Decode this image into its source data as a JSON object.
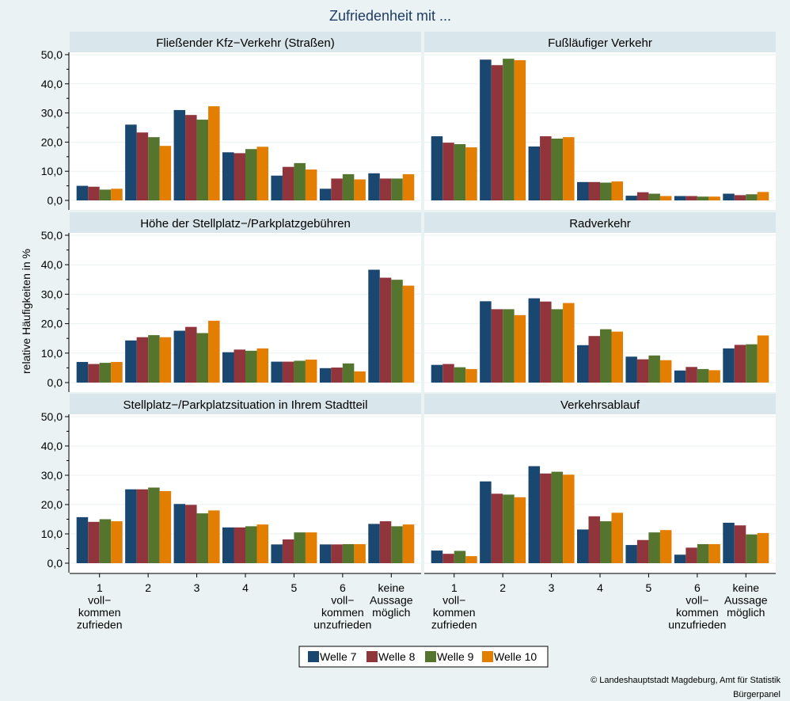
{
  "title": "Zufriedenheit mit ...",
  "ylabel": "relative Häufigkeiten in %",
  "credit": {
    "line1": "© Landeshauptstadt Magdeburg, Amt für Statistik",
    "line2": "Bürgerpanel"
  },
  "colors": {
    "background": "#eaf2f3",
    "panel_header": "#d9e6eb",
    "plot": "#ffffff",
    "series": [
      "#1a476f",
      "#90353b",
      "#55752f",
      "#e37e00"
    ]
  },
  "legend": {
    "items": [
      "Welle 7",
      "Welle 8",
      "Welle 9",
      "Welle 10"
    ],
    "position": "bottom"
  },
  "x_tick_labels": [
    [
      "1",
      "voll−",
      "kommen",
      "zufrieden"
    ],
    [
      "2"
    ],
    [
      "3"
    ],
    [
      "4"
    ],
    [
      "5"
    ],
    [
      "6",
      "voll−",
      "kommen",
      "unzufrieden"
    ],
    [
      "keine",
      "Aussage",
      "möglich"
    ]
  ],
  "y_tick_labels": [
    "0,0",
    "10,0",
    "20,0",
    "30,0",
    "40,0",
    "50,0"
  ],
  "chart_data": [
    {
      "type": "bar",
      "title": "Fließender Kfz−Verkehr (Straßen)",
      "categories": [
        "1 voll−kommen zufrieden",
        "2",
        "3",
        "4",
        "5",
        "6 voll−kommen unzufrieden",
        "keine Aussage möglich"
      ],
      "ylim": [
        0,
        50
      ],
      "grid": true,
      "series": [
        {
          "name": "Welle 7",
          "values": [
            5,
            26,
            31,
            16.5,
            8.5,
            4,
            9.3
          ]
        },
        {
          "name": "Welle 8",
          "values": [
            4.7,
            23.3,
            29.3,
            16.2,
            11.5,
            7.5,
            7.5
          ]
        },
        {
          "name": "Welle 9",
          "values": [
            3.7,
            21.7,
            27.7,
            17.6,
            12.8,
            9,
            7.5
          ]
        },
        {
          "name": "Welle 10",
          "values": [
            4,
            18.7,
            32.3,
            18.4,
            10.6,
            7.2,
            9
          ]
        }
      ]
    },
    {
      "type": "bar",
      "title": "Fußläufiger Verkehr",
      "categories": [
        "1 voll−kommen zufrieden",
        "2",
        "3",
        "4",
        "5",
        "6 voll−kommen unzufrieden",
        "keine Aussage möglich"
      ],
      "ylim": [
        0,
        50
      ],
      "grid": true,
      "series": [
        {
          "name": "Welle 7",
          "values": [
            22,
            48.3,
            18.5,
            6.3,
            1.6,
            1.5,
            2.3
          ]
        },
        {
          "name": "Welle 8",
          "values": [
            19.8,
            46.4,
            22,
            6.3,
            2.8,
            1.5,
            1.8
          ]
        },
        {
          "name": "Welle 9",
          "values": [
            19.3,
            48.6,
            21.2,
            6.1,
            2.3,
            1.3,
            2.1
          ]
        },
        {
          "name": "Welle 10",
          "values": [
            18.2,
            48.1,
            21.7,
            6.5,
            1.5,
            1.3,
            2.9
          ]
        }
      ]
    },
    {
      "type": "bar",
      "title": "Höhe der Stellplatz−/Parkplatzgebühren",
      "categories": [
        "1 voll−kommen zufrieden",
        "2",
        "3",
        "4",
        "5",
        "6 voll−kommen unzufrieden",
        "keine Aussage möglich"
      ],
      "ylim": [
        0,
        50
      ],
      "grid": true,
      "series": [
        {
          "name": "Welle 7",
          "values": [
            7,
            14.3,
            17.6,
            10.3,
            7.1,
            4.9,
            38.3
          ]
        },
        {
          "name": "Welle 8",
          "values": [
            6.3,
            15.4,
            18.9,
            11.2,
            7.1,
            5.1,
            35.6
          ]
        },
        {
          "name": "Welle 9",
          "values": [
            6.7,
            16.1,
            16.8,
            10.8,
            7.4,
            6.5,
            34.9
          ]
        },
        {
          "name": "Welle 10",
          "values": [
            7,
            15.4,
            21,
            11.6,
            7.8,
            3.8,
            32.9
          ]
        }
      ]
    },
    {
      "type": "bar",
      "title": "Radverkehr",
      "categories": [
        "1 voll−kommen zufrieden",
        "2",
        "3",
        "4",
        "5",
        "6 voll−kommen unzufrieden",
        "keine Aussage möglich"
      ],
      "ylim": [
        0,
        50
      ],
      "grid": true,
      "series": [
        {
          "name": "Welle 7",
          "values": [
            6,
            27.6,
            28.6,
            12.7,
            8.8,
            4.1,
            11.6
          ]
        },
        {
          "name": "Welle 8",
          "values": [
            6.3,
            24.9,
            27.5,
            15.8,
            7.9,
            5.3,
            12.8
          ]
        },
        {
          "name": "Welle 9",
          "values": [
            5.2,
            24.9,
            24.9,
            18.1,
            9.2,
            4.6,
            13
          ]
        },
        {
          "name": "Welle 10",
          "values": [
            4.6,
            22.9,
            27,
            17.3,
            7.6,
            4.2,
            16
          ]
        }
      ]
    },
    {
      "type": "bar",
      "title": "Stellplatz−/Parkplatzsituation in Ihrem Stadtteil",
      "categories": [
        "1 voll−kommen zufrieden",
        "2",
        "3",
        "4",
        "5",
        "6 voll−kommen unzufrieden",
        "keine Aussage möglich"
      ],
      "ylim": [
        0,
        50
      ],
      "grid": true,
      "series": [
        {
          "name": "Welle 7",
          "values": [
            15.7,
            25.2,
            20.2,
            12.2,
            6.4,
            6.4,
            13.4
          ]
        },
        {
          "name": "Welle 8",
          "values": [
            14.1,
            25.2,
            19.9,
            12.2,
            8.1,
            6.4,
            14.3
          ]
        },
        {
          "name": "Welle 9",
          "values": [
            15,
            25.8,
            17,
            12.6,
            10.5,
            6.5,
            12.6
          ]
        },
        {
          "name": "Welle 10",
          "values": [
            14.3,
            24.6,
            18,
            13.2,
            10.5,
            6.5,
            13.2
          ]
        }
      ]
    },
    {
      "type": "bar",
      "title": "Verkehrsablauf",
      "categories": [
        "1 voll−kommen zufrieden",
        "2",
        "3",
        "4",
        "5",
        "6 voll−kommen unzufrieden",
        "keine Aussage möglich"
      ],
      "ylim": [
        0,
        50
      ],
      "grid": true,
      "series": [
        {
          "name": "Welle 7",
          "values": [
            4.3,
            27.9,
            33.1,
            11.5,
            6.2,
            2.9,
            13.8
          ]
        },
        {
          "name": "Welle 8",
          "values": [
            3.2,
            23.7,
            30.6,
            16,
            7.9,
            5.3,
            12.9
          ]
        },
        {
          "name": "Welle 9",
          "values": [
            4.2,
            23.4,
            31.2,
            14.3,
            10.5,
            6.5,
            9.8
          ]
        },
        {
          "name": "Welle 10",
          "values": [
            2.4,
            22.5,
            30.2,
            17.2,
            11.3,
            6.5,
            10.3
          ]
        }
      ]
    }
  ]
}
